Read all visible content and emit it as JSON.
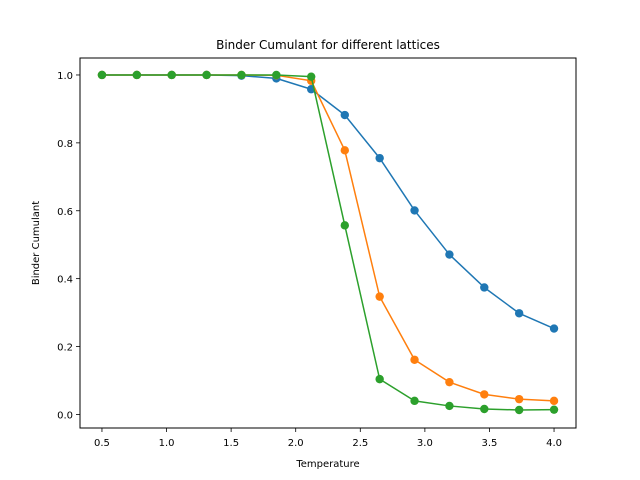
{
  "chart_data": {
    "type": "line",
    "title": "Binder Cumulant for different lattices",
    "xlabel": "Temperature",
    "ylabel": "Binder Cumulant",
    "xlim": [
      0.33,
      4.17
    ],
    "ylim": [
      -0.04,
      1.05
    ],
    "xticks": [
      0.5,
      1.0,
      1.5,
      2.0,
      2.5,
      3.0,
      3.5,
      4.0
    ],
    "xtick_labels": [
      "0.5",
      "1.0",
      "1.5",
      "2.0",
      "2.5",
      "3.0",
      "3.5",
      "4.0"
    ],
    "yticks": [
      0.0,
      0.2,
      0.4,
      0.6,
      0.8,
      1.0
    ],
    "ytick_labels": [
      "0.0",
      "0.2",
      "0.4",
      "0.6",
      "0.8",
      "1.0"
    ],
    "grid": false,
    "x": [
      0.5,
      0.77,
      1.04,
      1.31,
      1.58,
      1.85,
      2.12,
      2.38,
      2.65,
      2.92,
      3.19,
      3.46,
      3.73,
      4.0
    ],
    "series": [
      {
        "color": "#1f77b4",
        "values": [
          1.0,
          1.0,
          1.0,
          1.0,
          0.998,
          0.99,
          0.958,
          0.882,
          0.755,
          0.601,
          0.471,
          0.374,
          0.298,
          0.253
        ]
      },
      {
        "color": "#ff7f0e",
        "values": [
          1.0,
          1.0,
          1.0,
          1.0,
          1.0,
          0.999,
          0.983,
          0.778,
          0.347,
          0.161,
          0.095,
          0.059,
          0.045,
          0.04
        ]
      },
      {
        "color": "#2ca02c",
        "values": [
          1.0,
          1.0,
          1.0,
          1.0,
          1.0,
          1.0,
          0.995,
          0.557,
          0.104,
          0.04,
          0.025,
          0.016,
          0.013,
          0.014
        ]
      }
    ]
  }
}
